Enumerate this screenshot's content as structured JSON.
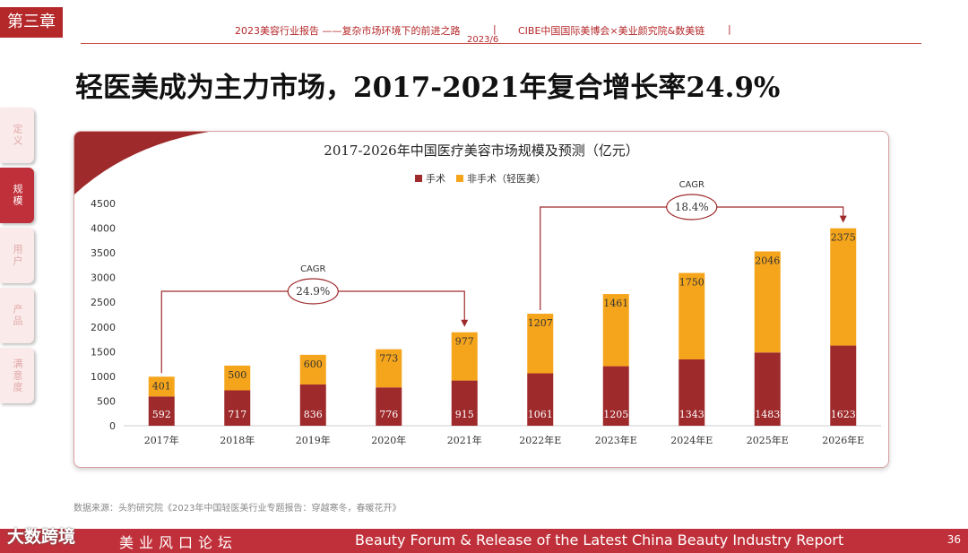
{
  "header": {
    "chapter": "第三章",
    "report_title": "2023美容行业报告 ——复杂市场环境下的前进之路",
    "separator": "|",
    "date": "2023/6",
    "org": "CIBE中国国际美博会×美业颜究院&数美链"
  },
  "page_title": "轻医美成为主力市场，2017-2021年复合增长率24.9%",
  "side_nav": {
    "items": [
      {
        "label": "定义",
        "active": false
      },
      {
        "label": "规模",
        "active": true
      },
      {
        "label": "用户",
        "active": false
      },
      {
        "label": "产品",
        "active": false
      },
      {
        "label": "满意度",
        "active": false
      }
    ]
  },
  "colors": {
    "brand": "#b5282a",
    "surgical": "#9e2a2b",
    "non_surgical": "#f5a51c"
  },
  "chart_data": {
    "type": "bar",
    "stacked": true,
    "title": "2017-2026年中国医疗美容市场规模及预测（亿元）",
    "categories": [
      "2017年",
      "2018年",
      "2019年",
      "2020年",
      "2021年",
      "2022年E",
      "2023年E",
      "2024年E",
      "2025年E",
      "2026年E"
    ],
    "series": [
      {
        "name": "手术",
        "color": "#9e2a2b",
        "values": [
          592,
          717,
          836,
          776,
          915,
          1061,
          1205,
          1343,
          1483,
          1623
        ]
      },
      {
        "name": "非手术（轻医美）",
        "color": "#f5a51c",
        "values": [
          401,
          500,
          600,
          773,
          977,
          1207,
          1461,
          1750,
          2046,
          2375
        ]
      }
    ],
    "ylim": [
      0,
      4500
    ],
    "yticks": [
      0,
      500,
      1000,
      1500,
      2000,
      2500,
      3000,
      3500,
      4000,
      4500
    ],
    "annotations": [
      {
        "label": "CAGR",
        "value": "24.9%",
        "from": "2017年",
        "to": "2021年"
      },
      {
        "label": "CAGR",
        "value": "18.4%",
        "from": "2022年E",
        "to": "2026年E"
      }
    ],
    "legend_position": "top-center"
  },
  "source": "数据来源：头豹研究院《2023年中国轻医美行业专题报告：穿越寒冬，春暖花开》",
  "footer": {
    "forum_cn": "美业风口论坛",
    "forum_en": "Beauty Forum & Release of the Latest China Beauty Industry Report",
    "page_number": "36"
  },
  "watermark": "大数跨境"
}
